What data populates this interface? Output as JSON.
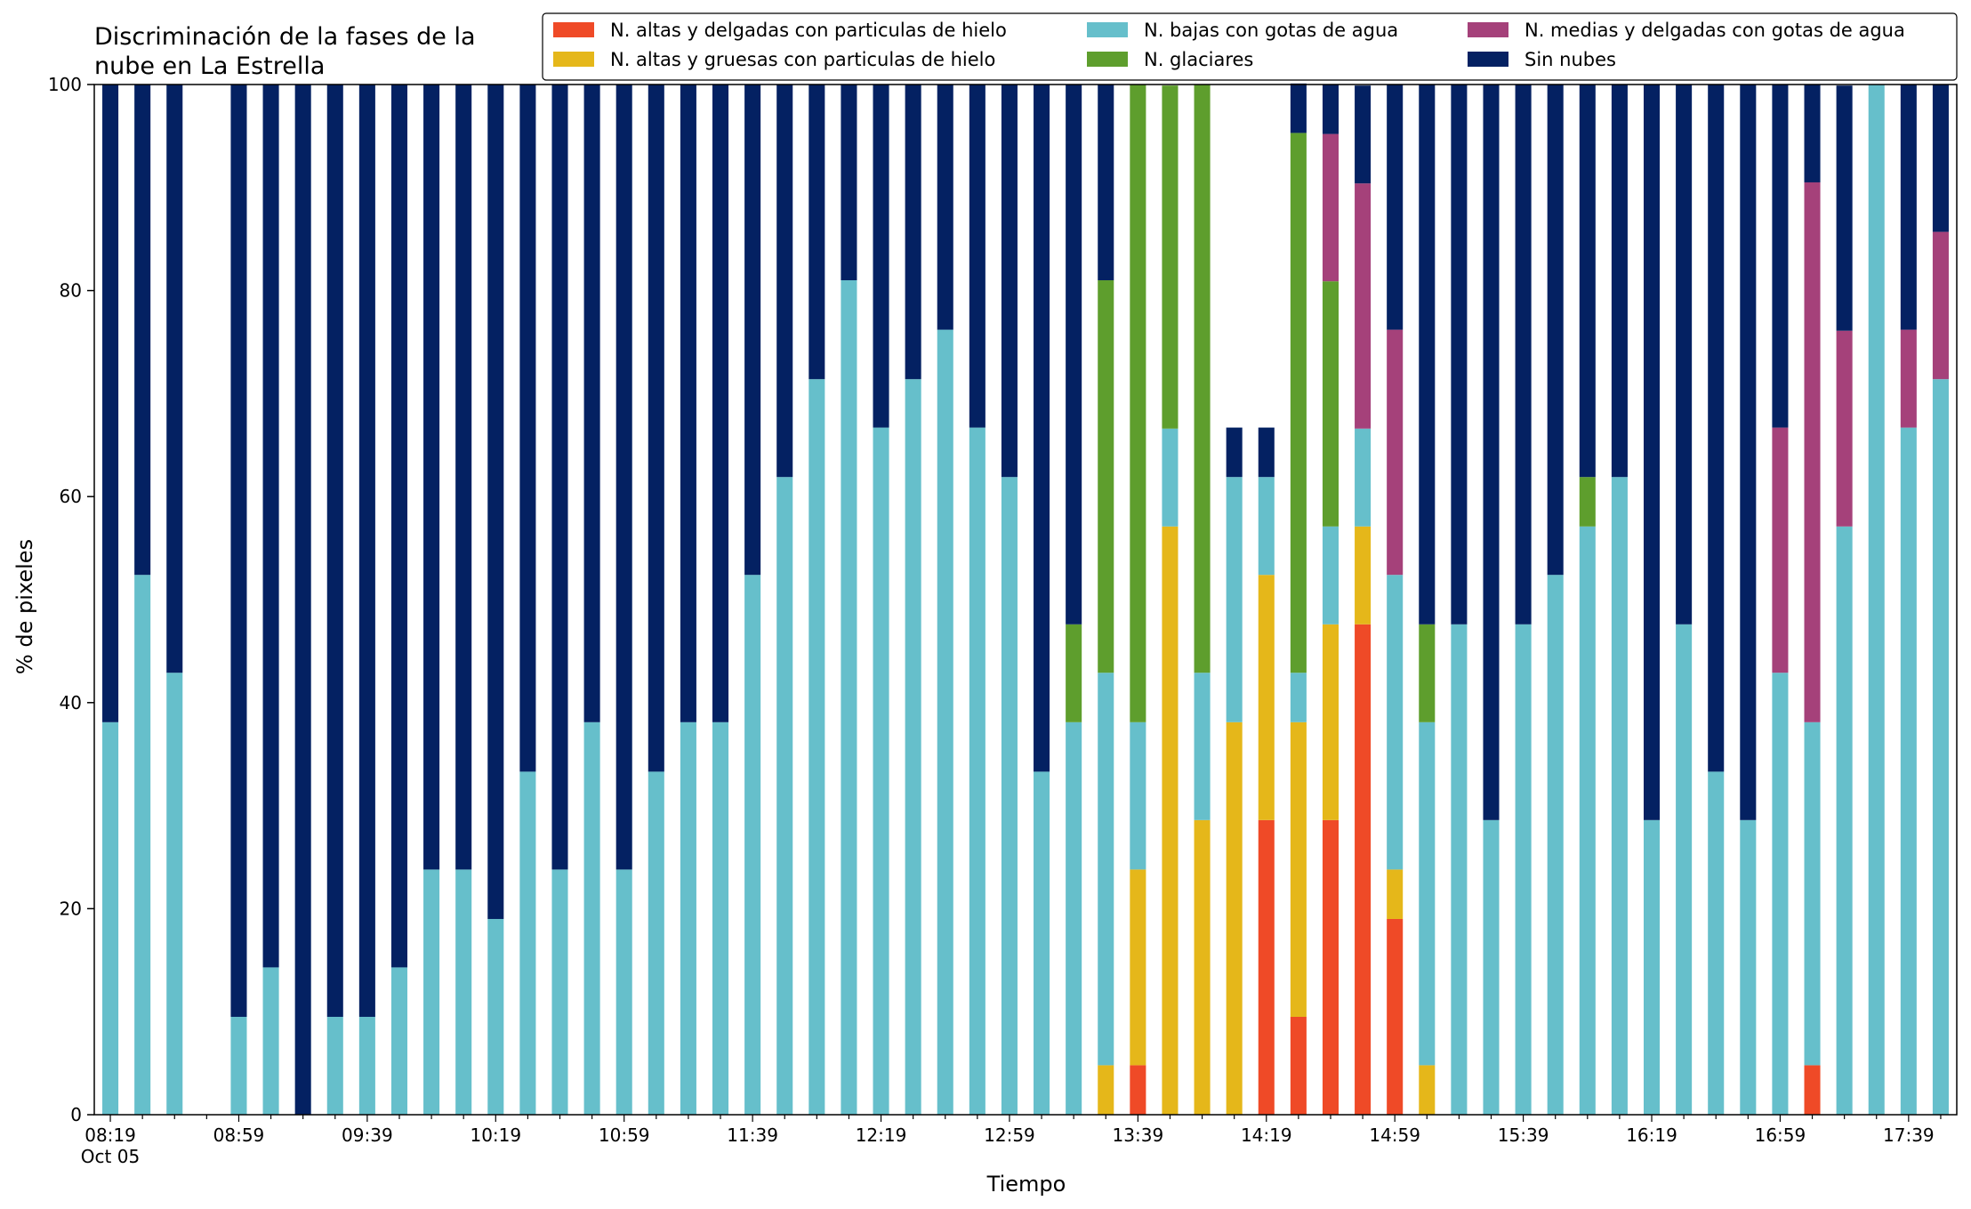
{
  "chart_data": {
    "type": "bar",
    "stacked": true,
    "title": "Discriminación de la fases de la nube en La Estrella",
    "title_lines": [
      "Discriminación de la fases de la",
      "nube en La Estrella"
    ],
    "xlabel": "Tiempo",
    "ylabel": "% de pixeles",
    "ylim": [
      0,
      100
    ],
    "yticks": [
      0,
      20,
      40,
      60,
      80,
      100
    ],
    "grid": false,
    "legend_position": "top-right",
    "legend_columns": 3,
    "date_label": "Oct 05",
    "categories": [
      "08:19",
      "08:29",
      "08:39",
      "08:49",
      "08:59",
      "09:09",
      "09:19",
      "09:29",
      "09:39",
      "09:49",
      "09:59",
      "10:09",
      "10:19",
      "10:29",
      "10:39",
      "10:49",
      "10:59",
      "11:09",
      "11:19",
      "11:29",
      "11:39",
      "11:49",
      "11:59",
      "12:09",
      "12:19",
      "12:29",
      "12:39",
      "12:49",
      "12:59",
      "13:09",
      "13:19",
      "13:29",
      "13:39",
      "13:49",
      "13:59",
      "14:09",
      "14:19",
      "14:29",
      "14:39",
      "14:49",
      "14:59",
      "15:09",
      "15:19",
      "15:29",
      "15:39",
      "15:49",
      "15:59",
      "16:09",
      "16:19",
      "16:29",
      "16:39",
      "16:49",
      "16:59",
      "17:09",
      "17:19",
      "17:29",
      "17:39",
      "17:49"
    ],
    "xtick_labels": [
      "08:19",
      "08:59",
      "09:39",
      "10:19",
      "10:59",
      "11:39",
      "12:19",
      "12:59",
      "13:39",
      "14:19",
      "14:59",
      "15:39",
      "16:19",
      "16:59",
      "17:39"
    ],
    "series": [
      {
        "name": "N. altas y delgadas con particulas de hielo",
        "color": "#ef4a27",
        "values": [
          0,
          0,
          0,
          0,
          0,
          0,
          0,
          0,
          0,
          0,
          0,
          0,
          0,
          0,
          0,
          0,
          0,
          0,
          0,
          0,
          0,
          0,
          0,
          0,
          0,
          0,
          0,
          0,
          0,
          0,
          0,
          0,
          4.8,
          0,
          0,
          0,
          28.6,
          9.5,
          28.6,
          47.6,
          19.0,
          0,
          0,
          0,
          0,
          0,
          0,
          0,
          0,
          0,
          0,
          0,
          0,
          4.8,
          0,
          0,
          0,
          0
        ]
      },
      {
        "name": "N. altas y gruesas con particulas de hielo",
        "color": "#e5b71a",
        "values": [
          0,
          0,
          0,
          0,
          0,
          0,
          0,
          0,
          0,
          0,
          0,
          0,
          0,
          0,
          0,
          0,
          0,
          0,
          0,
          0,
          0,
          0,
          0,
          0,
          0,
          0,
          0,
          0,
          0,
          0,
          0,
          4.8,
          19.0,
          57.1,
          28.6,
          38.1,
          23.8,
          28.6,
          19.0,
          9.5,
          4.8,
          4.8,
          0,
          0,
          0,
          0,
          0,
          0,
          0,
          0,
          0,
          0,
          0,
          0,
          0,
          0,
          0,
          0
        ]
      },
      {
        "name": "N. bajas con gotas de agua",
        "color": "#66bfcb",
        "values": [
          38.1,
          52.4,
          42.9,
          0,
          9.5,
          14.3,
          0,
          9.5,
          9.5,
          14.3,
          23.8,
          23.8,
          19.0,
          33.3,
          23.8,
          38.1,
          23.8,
          33.3,
          38.1,
          38.1,
          52.4,
          61.9,
          71.4,
          81.0,
          66.7,
          71.4,
          76.2,
          66.7,
          61.9,
          33.3,
          38.1,
          38.1,
          14.3,
          9.5,
          14.3,
          23.8,
          9.5,
          4.8,
          9.5,
          9.5,
          28.6,
          33.3,
          47.6,
          28.6,
          47.6,
          52.4,
          57.1,
          61.9,
          28.6,
          47.6,
          33.3,
          28.6,
          42.9,
          33.3,
          57.1,
          100,
          66.7,
          71.4
        ]
      },
      {
        "name": "N. glaciares",
        "color": "#5e9e2d",
        "values": [
          0,
          0,
          0,
          0,
          0,
          0,
          0,
          0,
          0,
          0,
          0,
          0,
          0,
          0,
          0,
          0,
          0,
          0,
          0,
          0,
          0,
          0,
          0,
          0,
          0,
          0,
          0,
          0,
          0,
          0,
          9.5,
          38.1,
          61.9,
          33.3,
          57.1,
          0,
          0,
          52.4,
          23.8,
          0,
          0,
          9.5,
          0,
          0,
          0,
          0,
          4.8,
          0,
          0,
          0,
          0,
          0,
          0,
          0,
          0,
          0,
          0,
          0
        ]
      },
      {
        "name": "N. medias y delgadas con gotas de agua",
        "color": "#a5417a",
        "values": [
          0,
          0,
          0,
          0,
          0,
          0,
          0,
          0,
          0,
          0,
          0,
          0,
          0,
          0,
          0,
          0,
          0,
          0,
          0,
          0,
          0,
          0,
          0,
          0,
          0,
          0,
          0,
          0,
          0,
          0,
          0,
          0,
          0,
          0,
          0,
          0,
          0,
          0,
          14.3,
          23.8,
          23.8,
          0,
          0,
          0,
          0,
          0,
          0,
          0,
          0,
          0,
          0,
          0,
          23.8,
          52.4,
          19.0,
          0,
          9.5,
          14.3
        ]
      },
      {
        "name": "Sin nubes",
        "color": "#042162",
        "values": [
          61.9,
          47.6,
          57.1,
          0,
          90.5,
          85.7,
          100,
          90.5,
          90.5,
          85.7,
          76.2,
          76.2,
          81.0,
          66.7,
          76.2,
          61.9,
          76.2,
          66.7,
          61.9,
          61.9,
          47.6,
          38.1,
          28.6,
          19.0,
          33.3,
          28.6,
          23.8,
          33.3,
          38.1,
          66.7,
          52.4,
          19.0,
          0,
          0,
          0,
          4.8,
          4.8,
          4.8,
          4.8,
          9.5,
          23.8,
          52.4,
          52.4,
          71.4,
          52.4,
          47.6,
          38.1,
          38.1,
          71.4,
          52.4,
          66.7,
          71.4,
          33.3,
          9.5,
          23.8,
          0,
          23.8,
          14.3
        ]
      }
    ]
  }
}
